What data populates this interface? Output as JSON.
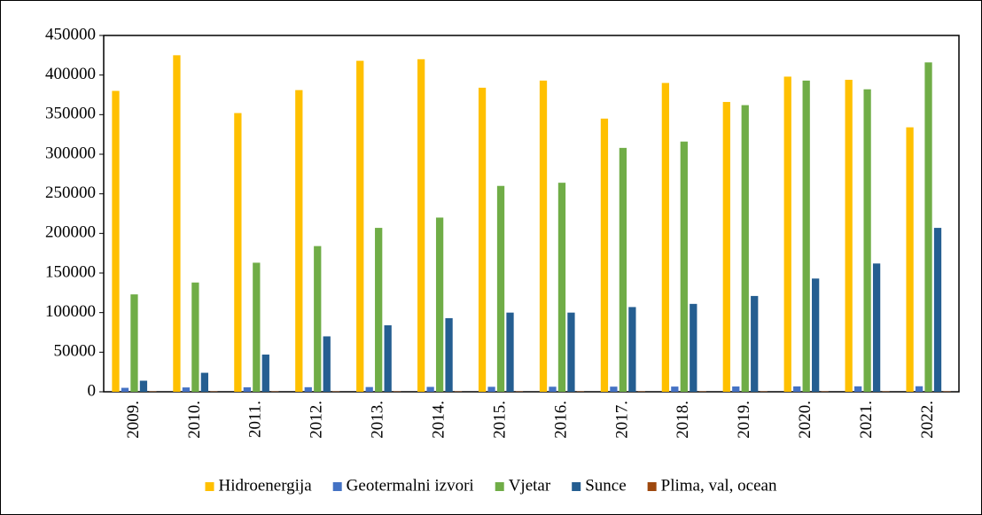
{
  "chart_data": {
    "type": "bar",
    "categories": [
      "2009.",
      "2010.",
      "2011.",
      "2012.",
      "2013.",
      "2014.",
      "2015.",
      "2016.",
      "2017.",
      "2018.",
      "2019.",
      "2020.",
      "2021.",
      "2022."
    ],
    "series": [
      {
        "name": "Hidroenergija",
        "color": "#FFC000",
        "values": [
          380000,
          425000,
          352000,
          381000,
          418000,
          420000,
          384000,
          393000,
          345000,
          390000,
          366000,
          398000,
          394000,
          334000
        ]
      },
      {
        "name": "Geotermalni izvori",
        "color": "#4472C4",
        "values": [
          5000,
          5500,
          5700,
          5800,
          6000,
          6200,
          6300,
          6400,
          6500,
          6600,
          6700,
          6800,
          6900,
          7000
        ]
      },
      {
        "name": "Vjetar",
        "color": "#70AD47",
        "values": [
          123000,
          138000,
          163000,
          184000,
          207000,
          220000,
          260000,
          264000,
          308000,
          316000,
          362000,
          393000,
          382000,
          416000
        ]
      },
      {
        "name": "Sunce",
        "color": "#255E91",
        "values": [
          14000,
          24000,
          47000,
          70000,
          84000,
          93000,
          100000,
          100000,
          107000,
          111000,
          121000,
          143000,
          162000,
          207000
        ]
      },
      {
        "name": "Plima, val, ocean",
        "color": "#9E480E",
        "values": [
          500,
          500,
          500,
          500,
          500,
          500,
          500,
          500,
          500,
          500,
          500,
          500,
          500,
          500
        ]
      }
    ],
    "ylim": [
      0,
      450000
    ],
    "yticks": [
      0,
      50000,
      100000,
      150000,
      200000,
      250000,
      300000,
      350000,
      400000,
      450000
    ],
    "grid": false,
    "legend": "bottom"
  }
}
